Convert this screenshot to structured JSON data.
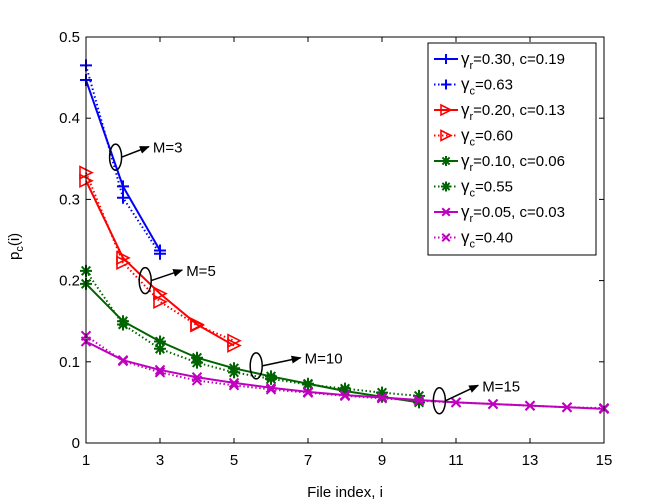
{
  "chart_data": {
    "type": "line",
    "title": "",
    "xlabel": "File index, i",
    "ylabel_main": "p",
    "ylabel_sub": "c",
    "ylabel_tail": "(i)",
    "xlim": [
      1,
      15
    ],
    "ylim": [
      0,
      0.5
    ],
    "xticks": [
      1,
      3,
      5,
      7,
      9,
      11,
      13,
      15
    ],
    "yticks": [
      0,
      0.1,
      0.2,
      0.3,
      0.4,
      0.5
    ],
    "xtick_labels": [
      "1",
      "3",
      "5",
      "7",
      "9",
      "11",
      "13",
      "15"
    ],
    "ytick_labels": [
      "0",
      "0.1",
      "0.2",
      "0.3",
      "0.4",
      "0.5"
    ],
    "grid": false,
    "legend_position": "top-right",
    "series": [
      {
        "name": "γr=0.30, c=0.19",
        "legend_greek": "γ",
        "legend_sub": "r",
        "legend_rest": "=0.30, c=0.19",
        "color": "#0000ff",
        "marker": "plus",
        "line": "solid",
        "x": [
          1,
          2,
          3
        ],
        "values": [
          0.447,
          0.316,
          0.237
        ]
      },
      {
        "name": "γc=0.63",
        "legend_greek": "γ",
        "legend_sub": "c",
        "legend_rest": "=0.63",
        "color": "#0000ff",
        "marker": "plus",
        "line": "dotted",
        "x": [
          1,
          2,
          3
        ],
        "values": [
          0.465,
          0.302,
          0.233
        ]
      },
      {
        "name": "γr=0.20, c=0.13",
        "legend_greek": "γ",
        "legend_sub": "r",
        "legend_rest": "=0.20, c=0.13",
        "color": "#ff0000",
        "marker": "triangle-right",
        "line": "solid",
        "x": [
          1,
          2,
          3,
          4,
          5
        ],
        "values": [
          0.323,
          0.228,
          0.184,
          0.146,
          0.12
        ]
      },
      {
        "name": "γc=0.60",
        "legend_greek": "γ",
        "legend_sub": "c",
        "legend_rest": "=0.60",
        "color": "#ff0000",
        "marker": "triangle-right",
        "line": "dotted",
        "x": [
          1,
          2,
          3,
          4,
          5
        ],
        "values": [
          0.333,
          0.222,
          0.174,
          0.145,
          0.126
        ]
      },
      {
        "name": "γr=0.10, c=0.06",
        "legend_greek": "γ",
        "legend_sub": "r",
        "legend_rest": "=0.10, c=0.06",
        "color": "#006400",
        "marker": "star",
        "line": "solid",
        "x": [
          1,
          2,
          3,
          4,
          5,
          6,
          7,
          8,
          9,
          10
        ],
        "values": [
          0.196,
          0.15,
          0.125,
          0.105,
          0.092,
          0.082,
          0.073,
          0.064,
          0.057,
          0.05
        ]
      },
      {
        "name": "γc=0.55",
        "legend_greek": "γ",
        "legend_sub": "c",
        "legend_rest": "=0.55",
        "color": "#006400",
        "marker": "star",
        "line": "dotted",
        "x": [
          1,
          2,
          3,
          4,
          5,
          6,
          7,
          8,
          9,
          10
        ],
        "values": [
          0.212,
          0.146,
          0.116,
          0.099,
          0.087,
          0.079,
          0.072,
          0.067,
          0.062,
          0.058
        ]
      },
      {
        "name": "γr=0.05, c=0.03",
        "legend_greek": "γ",
        "legend_sub": "r",
        "legend_rest": "=0.05, c=0.03",
        "color": "#bf00bf",
        "marker": "x",
        "line": "solid",
        "x": [
          1,
          2,
          3,
          4,
          5,
          6,
          7,
          8,
          9,
          10,
          11,
          12,
          13,
          14,
          15
        ],
        "values": [
          0.125,
          0.102,
          0.09,
          0.081,
          0.074,
          0.068,
          0.063,
          0.059,
          0.056,
          0.053,
          0.05,
          0.048,
          0.046,
          0.044,
          0.042
        ]
      },
      {
        "name": "γc=0.40",
        "legend_greek": "γ",
        "legend_sub": "c",
        "legend_rest": "=0.40",
        "color": "#bf00bf",
        "marker": "x",
        "line": "dotted",
        "x": [
          1,
          2,
          3,
          4,
          5,
          6,
          7,
          8,
          9,
          10,
          11,
          12,
          13,
          14,
          15
        ],
        "values": [
          0.132,
          0.101,
          0.087,
          0.077,
          0.071,
          0.066,
          0.062,
          0.058,
          0.055,
          0.052,
          0.05,
          0.048,
          0.046,
          0.044,
          0.043
        ]
      }
    ],
    "annotations": [
      {
        "text": "M=3",
        "ellipse_at": [
          1.8,
          0.352
        ],
        "arrow_to": [
          2.7,
          0.365
        ]
      },
      {
        "text": "M=5",
        "ellipse_at": [
          2.6,
          0.2
        ],
        "arrow_to": [
          3.6,
          0.213
        ]
      },
      {
        "text": "M=10",
        "ellipse_at": [
          5.6,
          0.095
        ],
        "arrow_to": [
          6.8,
          0.105
        ]
      },
      {
        "text": "M=15",
        "ellipse_at": [
          10.55,
          0.052
        ],
        "arrow_to": [
          11.6,
          0.071
        ]
      }
    ]
  }
}
